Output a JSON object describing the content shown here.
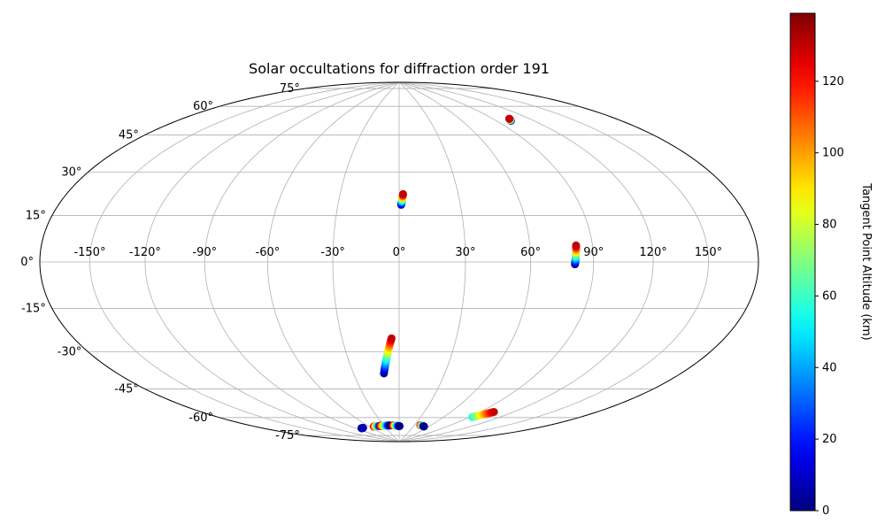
{
  "chart_data": {
    "type": "scatter",
    "projection": "hammer",
    "title": "Solar occultations for diffraction order 191",
    "grid": true,
    "xlabel": "",
    "ylabel": "",
    "longitude_ticks": [
      "-150°",
      "-120°",
      "-90°",
      "-60°",
      "-30°",
      "0°",
      "30°",
      "60°",
      "90°",
      "120°",
      "150°"
    ],
    "longitude_values": [
      -150,
      -120,
      -90,
      -60,
      -30,
      0,
      30,
      60,
      90,
      120,
      150
    ],
    "latitude_ticks": [
      "-75°",
      "-60°",
      "-45°",
      "-30°",
      "-15°",
      "0°",
      "15°",
      "30°",
      "45°",
      "60°",
      "75°"
    ],
    "latitude_values": [
      -75,
      -60,
      -45,
      -30,
      -15,
      0,
      15,
      30,
      45,
      60,
      75
    ],
    "colorbar": {
      "label": "Tangent Point Altitude (km)",
      "colormap": "jet",
      "range": [
        0,
        139
      ],
      "ticks": [
        "0",
        "20",
        "40",
        "60",
        "80",
        "100",
        "120"
      ],
      "tick_values": [
        0,
        20,
        40,
        60,
        80,
        100,
        120
      ]
    },
    "series": [
      {
        "lon": [
          102,
          104
        ],
        "lat": [
          63,
          64
        ],
        "alt": [
          0,
          130
        ]
      },
      {
        "lon": [
          1,
          2
        ],
        "lat": [
          26,
          31
        ],
        "alt": [
          0,
          130
        ]
      },
      {
        "lon": [
          81,
          82
        ],
        "lat": [
          -1,
          7
        ],
        "alt": [
          0,
          130
        ]
      },
      {
        "lon": [
          -10,
          -4
        ],
        "lat": [
          -52,
          -35
        ],
        "alt": [
          0,
          130
        ]
      },
      {
        "lon": [
          -80,
          -76
        ],
        "lat": [
          -80,
          -80
        ],
        "alt": [
          0,
          8
        ]
      },
      {
        "lon": [
          -52,
          -37
        ],
        "lat": [
          -80,
          -80
        ],
        "alt": [
          130,
          0
        ]
      },
      {
        "lon": [
          -38,
          -18
        ],
        "lat": [
          -80,
          -80
        ],
        "alt": [
          130,
          0
        ]
      },
      {
        "lon": [
          -12,
          1
        ],
        "lat": [
          -80,
          -80.5
        ],
        "alt": [
          130,
          0
        ]
      },
      {
        "lon": [
          41,
          51
        ],
        "lat": [
          -79.5,
          -80
        ],
        "alt": [
          130,
          0
        ]
      },
      {
        "lon": [
          93,
          103
        ],
        "lat": [
          -72,
          -68
        ],
        "alt": [
          55,
          130
        ]
      }
    ]
  }
}
